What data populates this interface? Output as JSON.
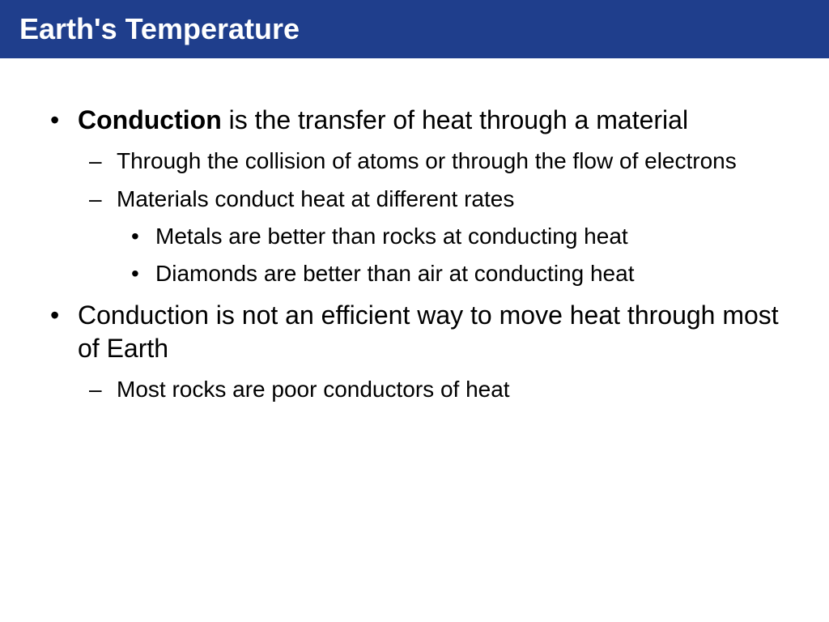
{
  "header": {
    "title": "Earth's Temperature",
    "bg_color": "#1f3e8c",
    "text_color": "#ffffff"
  },
  "body": {
    "text_color": "#000000",
    "bg_color": "#ffffff",
    "font_sizes": {
      "title": 36,
      "level1": 32,
      "level2": 28,
      "level3": 28
    }
  },
  "bullets": {
    "item1_bold": "Conduction",
    "item1_rest": " is the transfer of heat through a material",
    "item1_sub1": "Through the collision of atoms or through the flow of electrons",
    "item1_sub2": "Materials conduct heat at different rates",
    "item1_sub2_a": "Metals are better than rocks at conducting heat",
    "item1_sub2_b": "Diamonds are better than air at conducting heat",
    "item2": "Conduction is not an efficient way to move heat through most of Earth",
    "item2_sub1": "Most rocks are poor conductors of heat"
  }
}
